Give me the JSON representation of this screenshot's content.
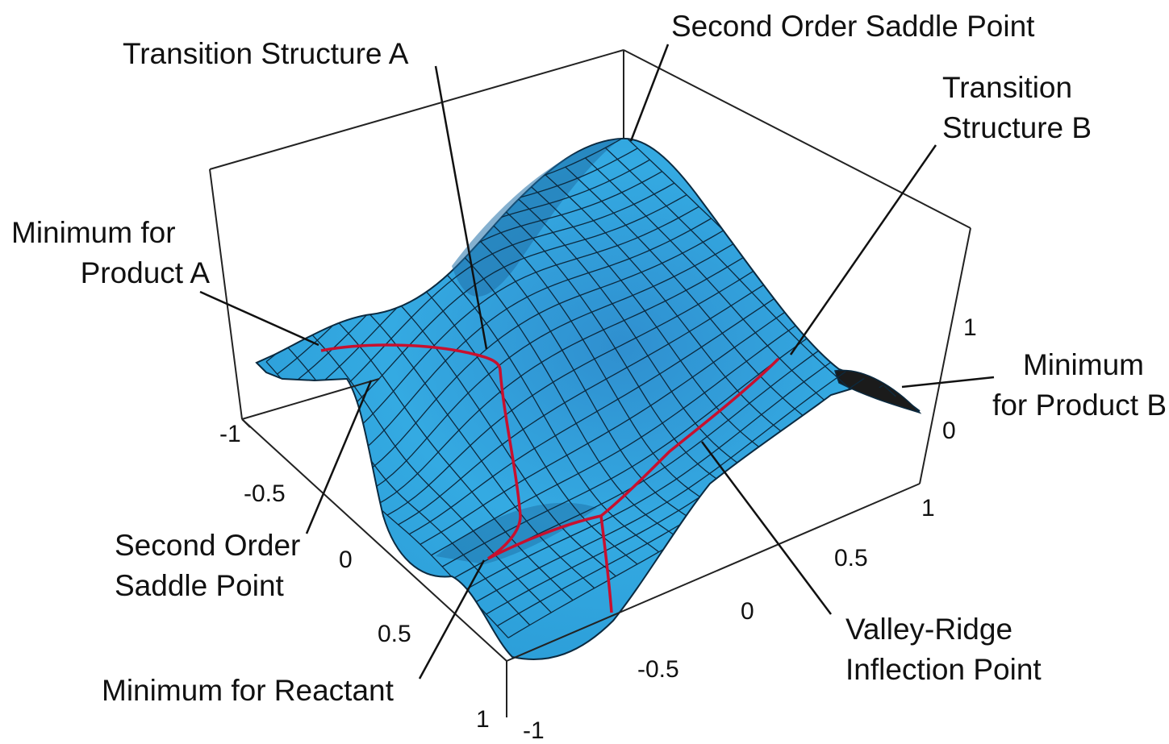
{
  "annotations": {
    "transition_a": "Transition Structure A",
    "second_order_top": "Second Order Saddle Point",
    "transition_b_line1": "Transition",
    "transition_b_line2": "Structure B",
    "min_product_a_line1": "Minimum for",
    "min_product_a_line2": "Product A",
    "min_product_b_line1": "Minimum",
    "min_product_b_line2": "for Product B",
    "second_order_left_line1": "Second Order",
    "second_order_left_line2": "Saddle Point",
    "min_reactant": "Minimum for Reactant",
    "vri_line1": "Valley-Ridge",
    "vri_line2": "Inflection Point"
  },
  "axes": {
    "left_ticks": [
      "-1",
      "-0.5",
      "0",
      "0.5",
      "1"
    ],
    "front_ticks": [
      "-1",
      "-0.5",
      "0",
      "0.5",
      "1"
    ],
    "vertical_ticks": [
      "0",
      "1"
    ]
  },
  "colors": {
    "surface": "#2fa4dc",
    "surface_dark": "#1c5f93",
    "mesh": "#0b2a40",
    "path": "#c8102e",
    "box": "#222222"
  }
}
